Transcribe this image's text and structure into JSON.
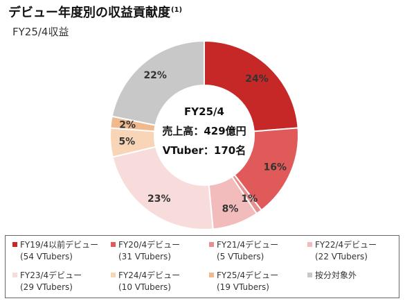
{
  "header": {
    "title": "デビュー年度別の収益貢献度",
    "title_note": "(1)",
    "subtitle": "FY25/4収益"
  },
  "chart_data": {
    "type": "pie",
    "categories": [
      "FY19/4以前デビュー",
      "FY20/4デビュー",
      "FY21/4デビュー",
      "FY22/4デビュー",
      "FY23/4デビュー",
      "FY24/4デビュー",
      "FY25/4デビュー",
      "按分対象外"
    ],
    "values": [
      24,
      16,
      1,
      8,
      23,
      5,
      2,
      22
    ],
    "value_labels": [
      "24%",
      "16%",
      "1%",
      "8%",
      "23%",
      "5%",
      "2%",
      "22%"
    ],
    "colors": [
      "#c62828",
      "#e05a5a",
      "#e8908f",
      "#f2bcbc",
      "#f8dcdc",
      "#f8d5b6",
      "#f0b98e",
      "#c8c8c8"
    ],
    "legend_sub": [
      "(54 VTubers)",
      "(31 VTubers)",
      "(5 VTubers)",
      "(22 VTubers)",
      "(29 VTubers)",
      "(10 VTubers)",
      "(19 VTubers)",
      ""
    ],
    "center": {
      "line1": "FY25/4",
      "line2": "売上高：429億円",
      "line3": "VTuber：170名"
    }
  }
}
